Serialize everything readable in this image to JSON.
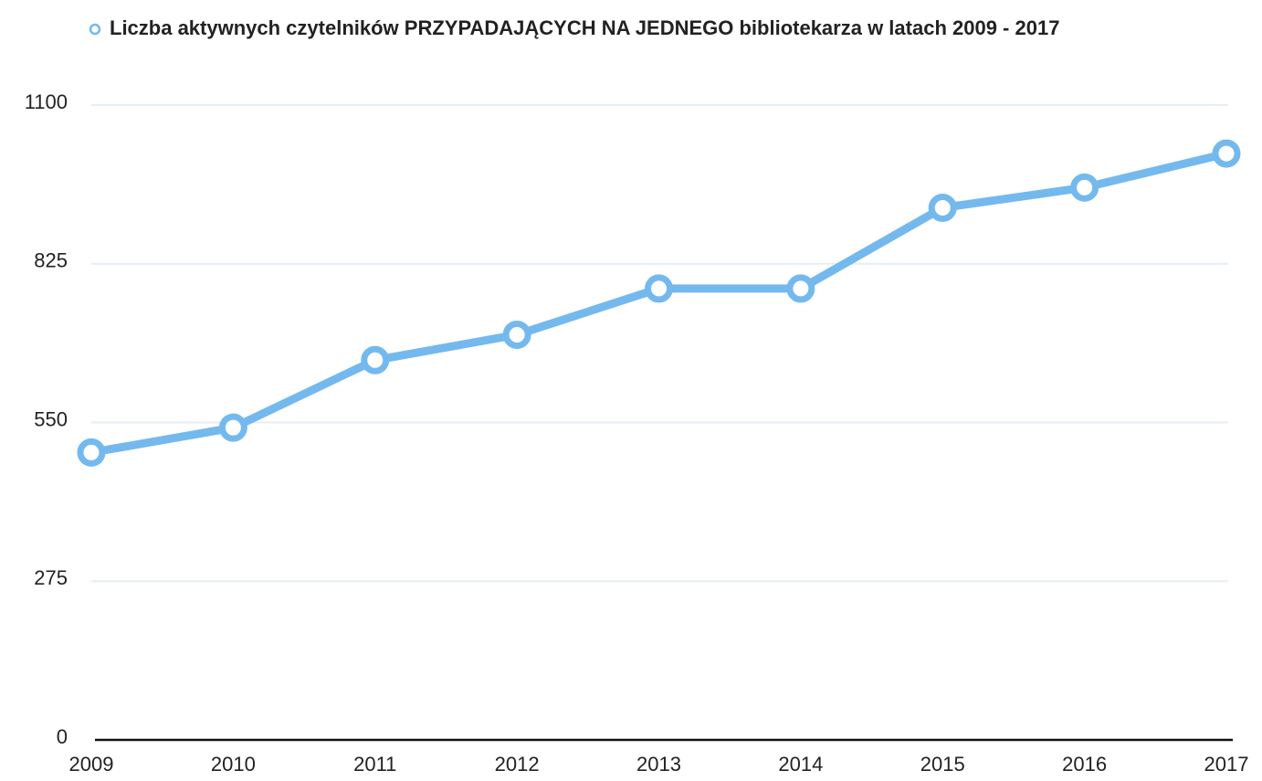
{
  "chart_data": {
    "type": "line",
    "series": [
      {
        "name": "Liczba aktywnych czytelników PRZYPADAJĄCYCH NA JEDNEGO bibliotekarza w latach 2009 - 2017",
        "color": "#74b9ee",
        "values": [
          498,
          541,
          658,
          702,
          782,
          782,
          922,
          957,
          1016
        ]
      }
    ],
    "categories": [
      "2009",
      "2010",
      "2011",
      "2012",
      "2013",
      "2014",
      "2015",
      "2016",
      "2017"
    ],
    "ylim": [
      0,
      1100
    ],
    "yticks": [
      0,
      275,
      550,
      825,
      1100
    ],
    "grid": true,
    "title_color": "#7d2a8c"
  }
}
